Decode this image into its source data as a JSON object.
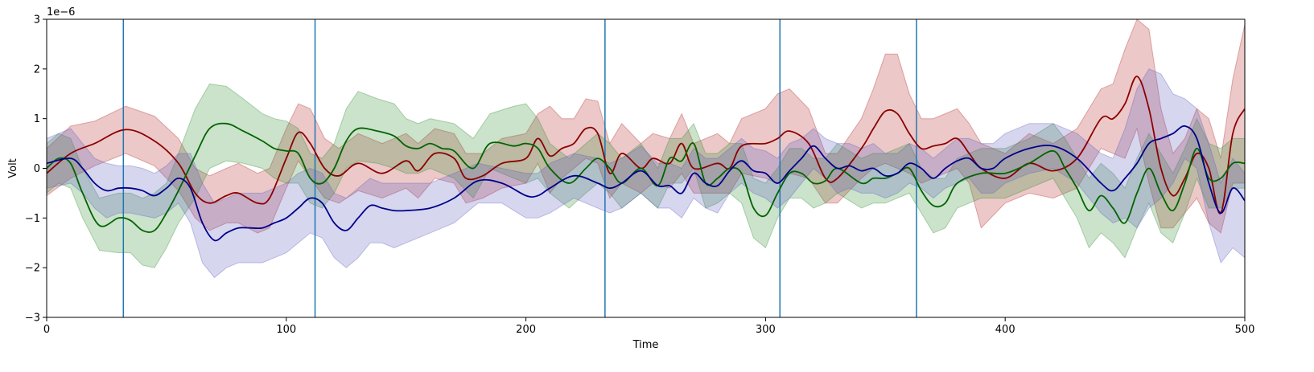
{
  "chart_data": {
    "type": "line",
    "title": "",
    "xlabel": "Time",
    "ylabel": "Volt",
    "y_offset_label": "1e−6",
    "y_scale": 1e-06,
    "xlim": [
      0,
      500
    ],
    "ylim": [
      -3,
      3
    ],
    "x_ticks": [
      0,
      100,
      200,
      300,
      400,
      500
    ],
    "x_tick_labels": [
      "0",
      "100",
      "200",
      "300",
      "400",
      "500"
    ],
    "y_ticks": [
      -3,
      -2,
      -1,
      0,
      1,
      2,
      3
    ],
    "y_tick_labels": [
      "−3",
      "−2",
      "−1",
      "0",
      "1",
      "2",
      "3"
    ],
    "grid": false,
    "legend": "none",
    "vertical_lines": {
      "color": "#1f77b4",
      "x": [
        32,
        112,
        233,
        306,
        363
      ]
    },
    "series": [
      {
        "color": "#8b0000",
        "band_color": "#b22222",
        "x": [
          0,
          10,
          20,
          33,
          45,
          55,
          62,
          68,
          75,
          80,
          88,
          93,
          100,
          105,
          110,
          116,
          122,
          130,
          140,
          150,
          155,
          162,
          170,
          175,
          182,
          190,
          200,
          205,
          210,
          215,
          220,
          225,
          230,
          235,
          240,
          248,
          253,
          260,
          265,
          270,
          280,
          285,
          290,
          300,
          305,
          310,
          318,
          325,
          330,
          340,
          345,
          350,
          355,
          360,
          365,
          370,
          375,
          380,
          385,
          390,
          400,
          410,
          420,
          430,
          440,
          445,
          450,
          455,
          460,
          465,
          470,
          475,
          480,
          485,
          490,
          495,
          500
        ],
        "mean": [
          -0.1,
          0.3,
          0.5,
          0.78,
          0.55,
          0.1,
          -0.5,
          -0.7,
          -0.55,
          -0.5,
          -0.7,
          -0.6,
          0.2,
          0.72,
          0.5,
          0.0,
          -0.15,
          0.1,
          -0.1,
          0.15,
          -0.05,
          0.3,
          0.2,
          -0.2,
          -0.15,
          0.1,
          0.2,
          0.6,
          0.25,
          0.4,
          0.5,
          0.8,
          0.7,
          -0.1,
          0.3,
          0.0,
          0.2,
          0.1,
          0.5,
          0.0,
          0.1,
          0.0,
          0.45,
          0.5,
          0.6,
          0.75,
          0.5,
          -0.2,
          -0.2,
          0.4,
          0.8,
          1.15,
          1.1,
          0.7,
          0.4,
          0.45,
          0.5,
          0.6,
          0.3,
          0.0,
          -0.2,
          0.1,
          -0.05,
          0.2,
          1.0,
          1.0,
          1.3,
          1.85,
          1.2,
          0.0,
          -0.55,
          -0.2,
          0.3,
          0.0,
          -0.9,
          0.7,
          1.2
        ],
        "upper": [
          0.4,
          0.85,
          0.95,
          1.25,
          1.05,
          0.6,
          0.0,
          -0.15,
          0.0,
          0.1,
          -0.1,
          0.0,
          0.8,
          1.3,
          1.2,
          0.6,
          0.4,
          0.7,
          0.5,
          0.7,
          0.5,
          0.8,
          0.7,
          0.3,
          0.3,
          0.6,
          0.7,
          1.1,
          1.25,
          1.0,
          1.0,
          1.4,
          1.35,
          0.5,
          0.9,
          0.5,
          0.7,
          0.6,
          1.1,
          0.5,
          0.7,
          0.5,
          1.0,
          1.2,
          1.5,
          1.6,
          1.2,
          0.3,
          0.3,
          1.0,
          1.6,
          2.3,
          2.3,
          1.5,
          1.0,
          1.0,
          1.1,
          1.2,
          0.9,
          0.5,
          0.3,
          0.7,
          0.5,
          0.8,
          1.6,
          1.7,
          2.4,
          3.0,
          2.8,
          1.2,
          0.3,
          0.6,
          1.2,
          1.0,
          0.2,
          1.8,
          2.9
        ],
        "lower": [
          -0.55,
          -0.2,
          0.05,
          0.3,
          0.05,
          -0.45,
          -1.0,
          -1.25,
          -1.1,
          -1.1,
          -1.3,
          -1.2,
          -0.4,
          0.15,
          -0.2,
          -0.6,
          -0.7,
          -0.45,
          -0.6,
          -0.4,
          -0.6,
          -0.2,
          -0.3,
          -0.7,
          -0.6,
          -0.4,
          -0.3,
          0.1,
          -0.5,
          -0.2,
          0.0,
          0.2,
          0.1,
          -0.6,
          -0.3,
          -0.5,
          -0.3,
          -0.4,
          -0.1,
          -0.5,
          -0.5,
          -0.5,
          -0.1,
          -0.2,
          -0.3,
          -0.1,
          -0.2,
          -0.7,
          -0.7,
          -0.2,
          0.0,
          0.1,
          0.0,
          -0.1,
          -0.3,
          -0.2,
          -0.1,
          0.0,
          -0.3,
          -1.2,
          -0.7,
          -0.5,
          -0.6,
          -0.4,
          0.4,
          0.3,
          0.2,
          0.8,
          -0.3,
          -1.2,
          -1.2,
          -0.9,
          -0.6,
          -1.1,
          -1.3,
          -0.3,
          -0.3
        ]
      },
      {
        "color": "#006400",
        "band_color": "#2e8b2e",
        "x": [
          0,
          5,
          10,
          15,
          22,
          30,
          35,
          40,
          45,
          50,
          55,
          62,
          68,
          75,
          82,
          90,
          95,
          100,
          105,
          110,
          115,
          120,
          125,
          130,
          138,
          145,
          150,
          155,
          160,
          165,
          170,
          178,
          185,
          195,
          200,
          205,
          210,
          218,
          225,
          230,
          235,
          240,
          248,
          255,
          260,
          265,
          270,
          275,
          280,
          285,
          290,
          295,
          300,
          305,
          310,
          315,
          320,
          325,
          330,
          340,
          345,
          350,
          355,
          360,
          365,
          370,
          375,
          380,
          390,
          400,
          410,
          420,
          425,
          430,
          435,
          440,
          445,
          450,
          455,
          460,
          465,
          470,
          475,
          480,
          485,
          490,
          495,
          500
        ],
        "mean": [
          0.0,
          0.2,
          0.1,
          -0.5,
          -1.15,
          -1.0,
          -1.05,
          -1.25,
          -1.25,
          -0.9,
          -0.45,
          0.25,
          0.8,
          0.9,
          0.75,
          0.55,
          0.4,
          0.35,
          0.3,
          -0.2,
          -0.3,
          0.0,
          0.55,
          0.8,
          0.75,
          0.65,
          0.45,
          0.4,
          0.5,
          0.4,
          0.35,
          0.0,
          0.5,
          0.45,
          0.5,
          0.4,
          0.0,
          -0.3,
          0.0,
          0.2,
          0.0,
          -0.3,
          0.0,
          -0.35,
          0.2,
          0.15,
          0.5,
          -0.3,
          -0.2,
          0.0,
          -0.1,
          -0.8,
          -0.95,
          -0.5,
          -0.1,
          -0.1,
          -0.3,
          -0.25,
          0.0,
          -0.3,
          -0.2,
          -0.2,
          -0.1,
          0.0,
          -0.45,
          -0.75,
          -0.7,
          -0.3,
          -0.1,
          -0.1,
          0.1,
          0.35,
          0.0,
          -0.4,
          -0.85,
          -0.55,
          -0.8,
          -1.1,
          -0.5,
          0.0,
          -0.5,
          -0.85,
          -0.3,
          0.4,
          -0.2,
          -0.2,
          0.1,
          0.1
        ],
        "upper": [
          0.5,
          0.7,
          0.6,
          0.0,
          -0.6,
          -0.5,
          -0.5,
          -0.6,
          -0.5,
          -0.3,
          0.3,
          1.2,
          1.7,
          1.65,
          1.4,
          1.1,
          1.0,
          0.95,
          0.8,
          0.3,
          0.2,
          0.5,
          1.2,
          1.55,
          1.4,
          1.3,
          1.0,
          0.9,
          1.0,
          0.95,
          0.9,
          0.6,
          1.1,
          1.25,
          1.3,
          1.0,
          0.5,
          0.2,
          0.5,
          0.7,
          0.5,
          0.2,
          0.5,
          0.0,
          0.6,
          0.6,
          0.9,
          0.3,
          0.3,
          0.5,
          0.5,
          -0.2,
          -0.3,
          0.0,
          0.4,
          0.4,
          0.2,
          0.2,
          0.5,
          0.2,
          0.3,
          0.3,
          0.4,
          0.5,
          0.0,
          -0.2,
          -0.2,
          0.2,
          0.4,
          0.4,
          0.6,
          0.9,
          0.6,
          0.2,
          -0.2,
          0.1,
          -0.1,
          -0.4,
          0.2,
          0.7,
          0.3,
          -0.1,
          0.4,
          1.0,
          0.5,
          0.4,
          0.6,
          0.6
        ],
        "lower": [
          -0.5,
          -0.3,
          -0.4,
          -1.0,
          -1.65,
          -1.7,
          -1.7,
          -1.95,
          -2.0,
          -1.6,
          -1.1,
          -0.6,
          0.0,
          0.15,
          0.1,
          0.0,
          -0.2,
          -0.3,
          -0.3,
          -0.7,
          -0.8,
          -0.5,
          0.0,
          0.15,
          0.1,
          0.0,
          -0.1,
          -0.1,
          0.0,
          -0.1,
          -0.2,
          -0.6,
          0.0,
          -0.2,
          -0.3,
          -0.2,
          -0.5,
          -0.8,
          -0.5,
          -0.3,
          -0.5,
          -0.8,
          -0.5,
          -0.8,
          -0.3,
          -0.3,
          0.0,
          -0.8,
          -0.7,
          -0.5,
          -0.7,
          -1.4,
          -1.6,
          -1.0,
          -0.6,
          -0.6,
          -0.8,
          -0.7,
          -0.5,
          -0.8,
          -0.7,
          -0.7,
          -0.6,
          -0.5,
          -0.9,
          -1.3,
          -1.2,
          -0.8,
          -0.6,
          -0.6,
          -0.4,
          -0.2,
          -0.6,
          -1.0,
          -1.6,
          -1.3,
          -1.5,
          -1.8,
          -1.2,
          -0.7,
          -1.3,
          -1.5,
          -0.9,
          -0.2,
          -0.8,
          -0.8,
          -0.4,
          -0.4
        ]
      },
      {
        "color": "#00008b",
        "band_color": "#5b5bc0",
        "x": [
          0,
          10,
          15,
          20,
          25,
          30,
          35,
          40,
          45,
          50,
          55,
          60,
          65,
          70,
          75,
          80,
          85,
          90,
          95,
          100,
          105,
          110,
          115,
          120,
          125,
          130,
          135,
          140,
          145,
          150,
          160,
          170,
          180,
          190,
          200,
          205,
          210,
          220,
          230,
          235,
          240,
          248,
          255,
          260,
          265,
          270,
          275,
          280,
          285,
          290,
          295,
          300,
          305,
          310,
          315,
          320,
          325,
          330,
          335,
          340,
          345,
          350,
          355,
          360,
          365,
          370,
          375,
          380,
          385,
          390,
          395,
          400,
          410,
          420,
          430,
          440,
          445,
          450,
          455,
          460,
          465,
          470,
          475,
          480,
          485,
          490,
          495,
          500
        ],
        "mean": [
          0.1,
          0.2,
          0.0,
          -0.3,
          -0.45,
          -0.4,
          -0.4,
          -0.45,
          -0.55,
          -0.4,
          -0.2,
          -0.4,
          -1.1,
          -1.45,
          -1.3,
          -1.2,
          -1.2,
          -1.2,
          -1.1,
          -1.0,
          -0.8,
          -0.6,
          -0.7,
          -1.1,
          -1.25,
          -1.0,
          -0.75,
          -0.8,
          -0.85,
          -0.85,
          -0.8,
          -0.6,
          -0.25,
          -0.3,
          -0.55,
          -0.55,
          -0.4,
          -0.15,
          -0.3,
          -0.4,
          -0.3,
          -0.05,
          -0.35,
          -0.35,
          -0.5,
          -0.1,
          -0.3,
          -0.35,
          -0.05,
          0.15,
          -0.05,
          -0.1,
          -0.3,
          -0.05,
          0.2,
          0.45,
          0.2,
          0.0,
          0.05,
          -0.05,
          0.0,
          -0.15,
          -0.1,
          0.1,
          0.0,
          -0.2,
          0.0,
          0.15,
          0.2,
          0.0,
          0.0,
          0.2,
          0.4,
          0.45,
          0.2,
          -0.3,
          -0.45,
          -0.2,
          0.1,
          0.5,
          0.6,
          0.7,
          0.85,
          0.6,
          -0.3,
          -0.9,
          -0.4,
          -0.65
        ],
        "upper": [
          0.6,
          0.8,
          0.5,
          0.2,
          0.1,
          0.05,
          0.05,
          0.0,
          -0.1,
          0.05,
          0.3,
          0.3,
          -0.3,
          -0.7,
          -0.6,
          -0.5,
          -0.5,
          -0.5,
          -0.4,
          -0.3,
          -0.1,
          0.0,
          -0.1,
          -0.5,
          -0.6,
          -0.4,
          -0.2,
          -0.3,
          -0.3,
          -0.3,
          -0.3,
          -0.1,
          0.1,
          0.0,
          -0.1,
          -0.1,
          0.1,
          0.3,
          0.2,
          0.1,
          0.2,
          0.45,
          0.1,
          0.1,
          0.0,
          0.4,
          0.2,
          0.2,
          0.4,
          0.6,
          0.4,
          0.35,
          0.2,
          0.5,
          0.6,
          0.8,
          0.6,
          0.5,
          0.5,
          0.4,
          0.5,
          0.3,
          0.3,
          0.5,
          0.4,
          0.2,
          0.4,
          0.6,
          0.6,
          0.5,
          0.5,
          0.7,
          0.9,
          0.9,
          0.7,
          0.3,
          0.2,
          0.8,
          1.6,
          2.0,
          1.9,
          1.5,
          1.4,
          1.2,
          0.5,
          -0.3,
          0.2,
          -0.1
        ],
        "lower": [
          -0.4,
          -0.3,
          -0.5,
          -0.8,
          -1.0,
          -0.9,
          -0.9,
          -0.95,
          -1.0,
          -0.9,
          -0.7,
          -1.1,
          -1.9,
          -2.2,
          -2.0,
          -1.9,
          -1.9,
          -1.9,
          -1.8,
          -1.7,
          -1.5,
          -1.3,
          -1.4,
          -1.8,
          -2.0,
          -1.8,
          -1.5,
          -1.5,
          -1.6,
          -1.5,
          -1.3,
          -1.1,
          -0.7,
          -0.7,
          -1.0,
          -1.0,
          -0.9,
          -0.6,
          -0.8,
          -0.9,
          -0.8,
          -0.5,
          -0.8,
          -0.8,
          -1.0,
          -0.6,
          -0.8,
          -0.9,
          -0.5,
          -0.3,
          -0.5,
          -0.6,
          -0.8,
          -0.6,
          -0.3,
          0.0,
          -0.2,
          -0.5,
          -0.4,
          -0.5,
          -0.5,
          -0.6,
          -0.5,
          -0.3,
          -0.4,
          -0.6,
          -0.4,
          -0.3,
          -0.2,
          -0.5,
          -0.5,
          -0.3,
          -0.1,
          0.0,
          -0.3,
          -0.9,
          -1.1,
          -1.0,
          -1.2,
          -0.8,
          -0.6,
          -0.3,
          0.2,
          0.0,
          -1.1,
          -1.9,
          -1.6,
          -1.8
        ]
      }
    ]
  }
}
